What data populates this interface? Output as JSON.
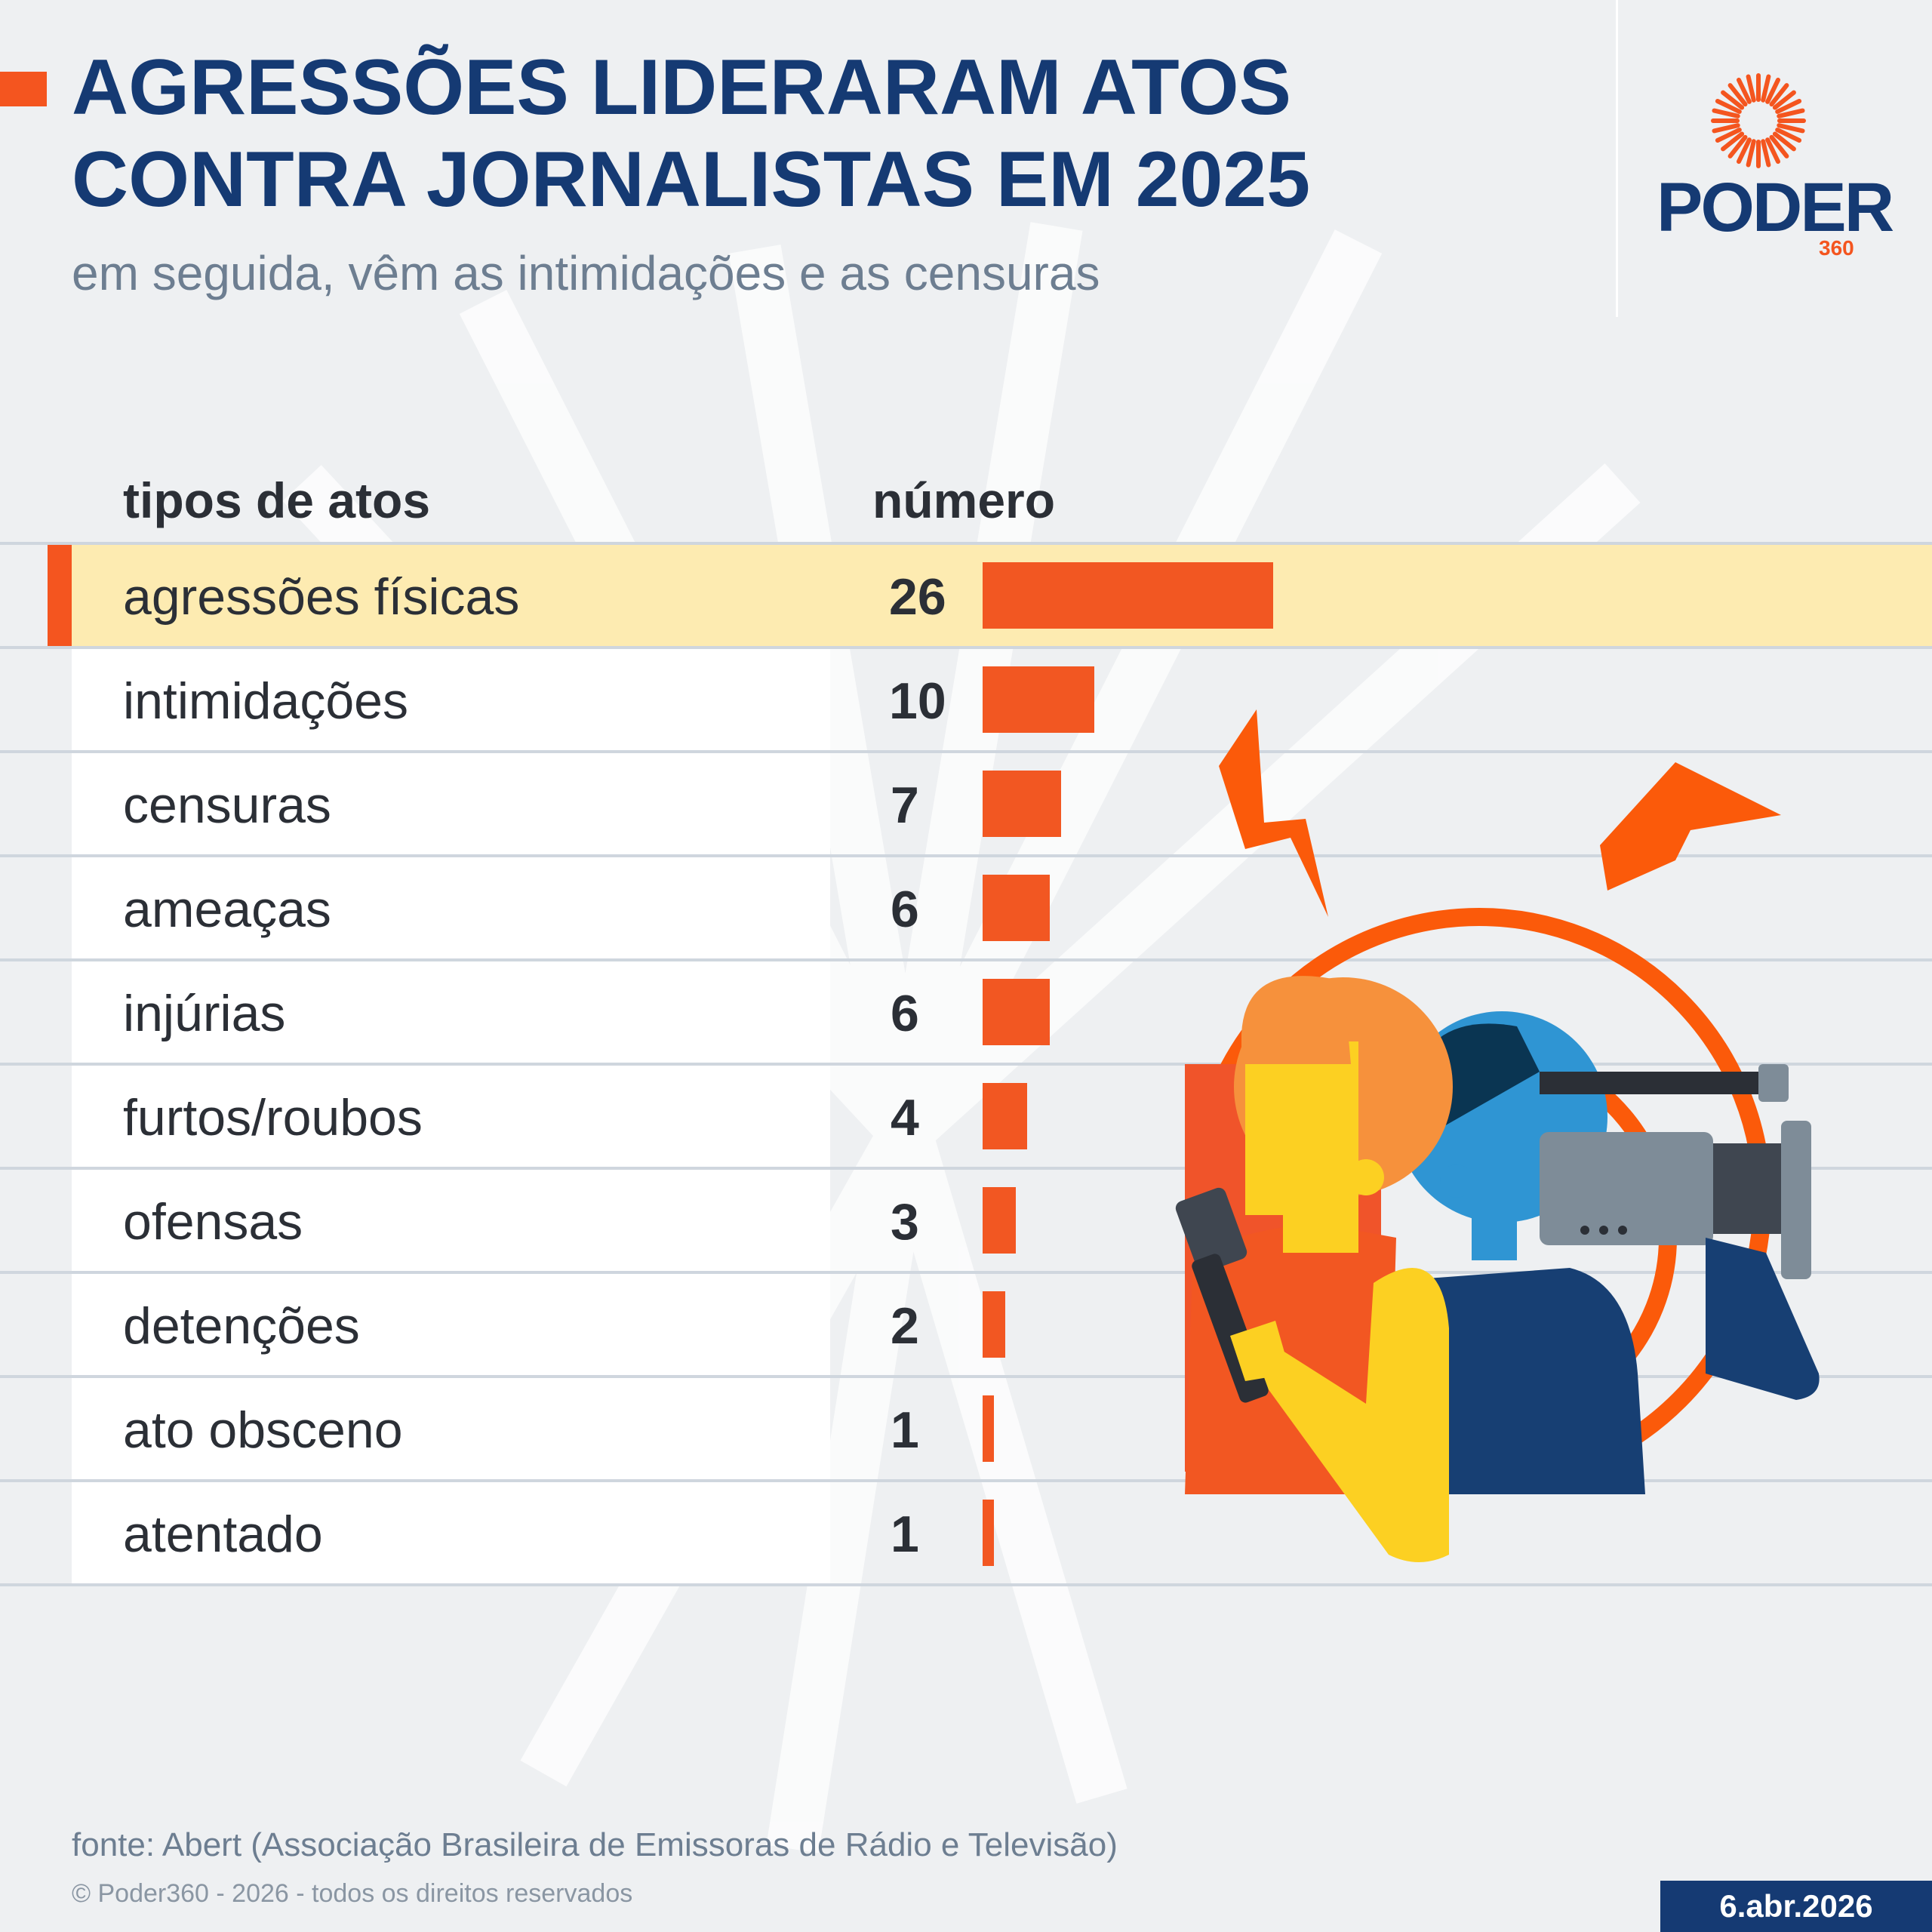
{
  "header": {
    "title": "AGRESSÕES LIDERARAM ATOS CONTRA JORNALISTAS EM 2025",
    "subtitle": "em seguida, vêm as intimidações e as censuras"
  },
  "brand": {
    "name": "PODER",
    "number": "360",
    "color_primary": "#153a73",
    "color_accent": "#f4551f"
  },
  "table": {
    "col_types": "tipos de atos",
    "col_number": "número"
  },
  "chart_data": {
    "type": "bar",
    "orientation": "horizontal",
    "categories": [
      "agressões físicas",
      "intimidações",
      "censuras",
      "ameaças",
      "injúrias",
      "furtos/roubos",
      "ofensas",
      "detenções",
      "ato obsceno",
      "atentado"
    ],
    "values": [
      26,
      10,
      7,
      6,
      6,
      4,
      3,
      2,
      1,
      1
    ],
    "highlight_index": 0,
    "bar_color": "#f25722",
    "highlight_color": "#fdebb1",
    "xlim": [
      0,
      26
    ]
  },
  "footer": {
    "source": "fonte: Abert (Associação Brasileira de Emissoras de Rádio e Televisão)",
    "copyright": "© Poder360 - 2026 - todos os direitos reservados",
    "date": "6.abr.2026"
  },
  "illustration": {
    "icon": "journalists-reporter-camera-icon"
  }
}
